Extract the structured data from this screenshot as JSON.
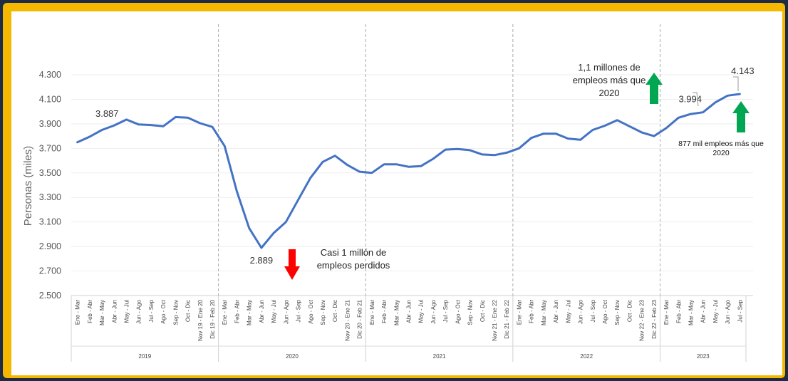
{
  "chart_data": {
    "type": "line",
    "ylabel": "Personas (miles)",
    "ylim": [
      2500,
      4300
    ],
    "yticks": [
      "2.500",
      "2.700",
      "2.900",
      "3.100",
      "3.300",
      "3.500",
      "3.700",
      "3.900",
      "4.100",
      "4.300"
    ],
    "ytick_values": [
      2500,
      2700,
      2900,
      3100,
      3300,
      3500,
      3700,
      3900,
      4100,
      4300
    ],
    "categories": [
      "Ene - Mar",
      "Feb - Abr",
      "Mar - May",
      "Abr - Jun",
      "May - Jul",
      "Jun - Ago",
      "Jul - Sep",
      "Ago - Oct",
      "Sep - Nov",
      "Oct - Dic",
      "Nov 19 - Ene 20",
      "Dic 19 - Feb 20",
      "Ene - Mar",
      "Feb - Abr",
      "Mar - May",
      "Abr - Jun",
      "May - Jul",
      "Jun - Ago",
      "Jul - Sep",
      "Ago - Oct",
      "Sep - Nov",
      "Oct - Dic",
      "Nov 20 - Ene 21",
      "Dic 20 - Feb 21",
      "Ene - Mar",
      "Feb - Abr",
      "Mar - May",
      "Abr - Jun",
      "May - Jul",
      "Jun - Ago",
      "Jul - Sep",
      "Ago - Oct",
      "Sep - Nov",
      "Oct - Dic",
      "Nov 21 - Ene 22",
      "Dic 21 - Feb 22",
      "Ene - Mar",
      "Feb - Abr",
      "Mar - May",
      "Abr - Jun",
      "May - Jul",
      "Jun - Ago",
      "Jul - Sep",
      "Ago - Oct",
      "Sep - Nov",
      "Oct - Dic",
      "Nov 22 - Ene 23",
      "Dic 22 - Feb 23",
      "Ene - Mar",
      "Feb - Abr",
      "Mar - May",
      "Abr - Jun",
      "May - Jul",
      "Jun - Ago",
      "Jul - Sep"
    ],
    "groups": [
      {
        "label": "2019",
        "count": 12
      },
      {
        "label": "2020",
        "count": 12
      },
      {
        "label": "2021",
        "count": 12
      },
      {
        "label": "2022",
        "count": 12
      },
      {
        "label": "2023",
        "count": 7
      }
    ],
    "series": [
      {
        "color": "#4472c4",
        "values": [
          3750,
          3795,
          3850,
          3887,
          3935,
          3895,
          3890,
          3880,
          3955,
          3950,
          3905,
          3875,
          3720,
          3350,
          3050,
          2889,
          3010,
          3100,
          3280,
          3460,
          3590,
          3640,
          3565,
          3510,
          3500,
          3570,
          3570,
          3550,
          3555,
          3615,
          3690,
          3695,
          3685,
          3650,
          3645,
          3665,
          3700,
          3785,
          3820,
          3820,
          3780,
          3770,
          3850,
          3885,
          3930,
          3880,
          3830,
          3800,
          3865,
          3950,
          3980,
          3994,
          4075,
          4130,
          4143
        ]
      }
    ],
    "point_labels": [
      {
        "index": 3,
        "text": "3.887"
      },
      {
        "index": 15,
        "text": "2.889"
      },
      {
        "index": 51,
        "text": "3.994"
      },
      {
        "index": 54,
        "text": "4.143"
      }
    ],
    "annotations": {
      "loss": [
        "Casi 1 millón de",
        "empleos perdidos"
      ],
      "gain_2022": [
        "1,1 millones de",
        "empleos más que",
        "2020"
      ],
      "gain_2023": [
        "877 mil empleos más que",
        "2020"
      ]
    },
    "colors": {
      "up_arrow": "#00a651",
      "down_arrow": "#ff0000",
      "frame": "#f5b800"
    }
  }
}
